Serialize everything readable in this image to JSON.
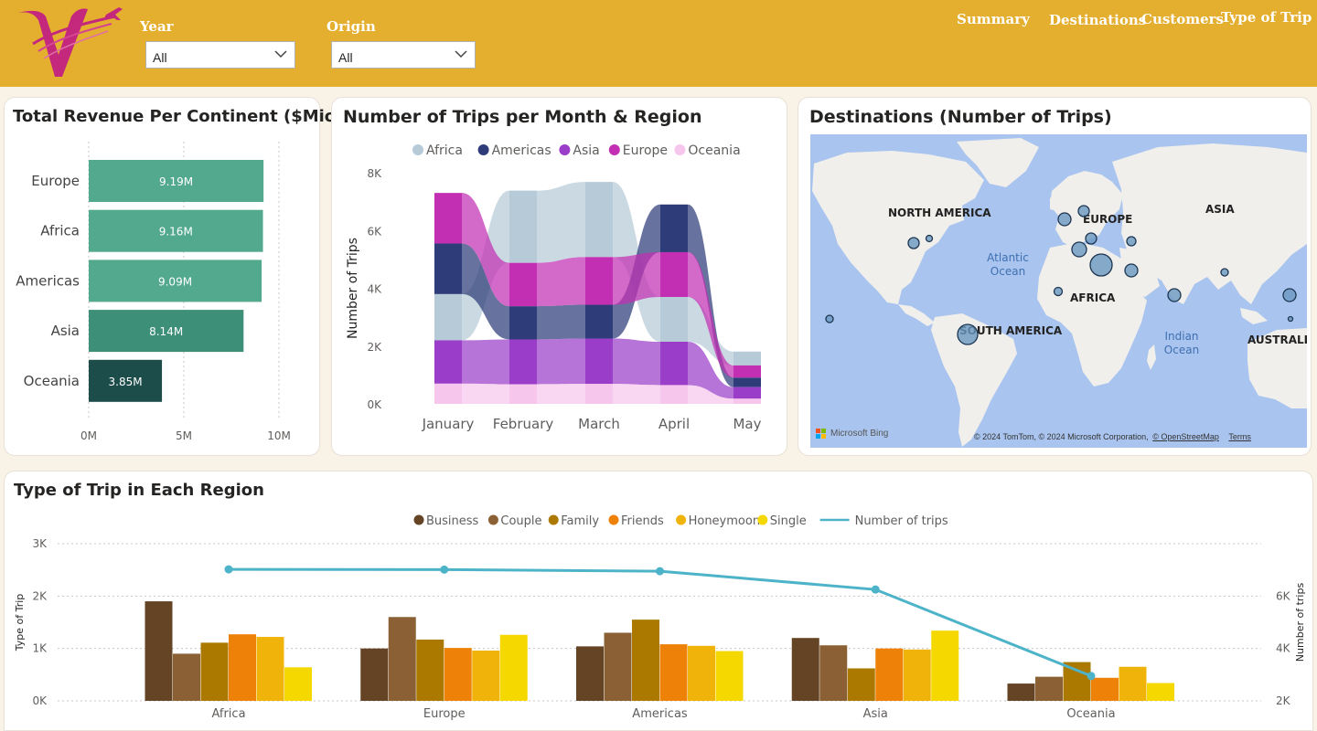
{
  "header": {
    "filters": [
      {
        "label": "Year",
        "value": "All"
      },
      {
        "label": "Origin",
        "value": "All"
      }
    ],
    "nav": [
      "Summary",
      "Destinations",
      "Customers",
      "Type of Trip"
    ],
    "colors": {
      "bar": "#e4ae2f",
      "nav_text": "#ffffff",
      "logo": "#c3287c"
    }
  },
  "revenue": {
    "title": "Total Revenue Per Continent ($Mio)",
    "chart_data": {
      "type": "bar",
      "orientation": "horizontal",
      "categories": [
        "Europe",
        "Africa",
        "Americas",
        "Asia",
        "Oceania"
      ],
      "values": [
        9.19,
        9.16,
        9.09,
        8.14,
        3.85
      ],
      "data_labels": [
        "9.19M",
        "9.16M",
        "9.09M",
        "8.14M",
        "3.85M"
      ],
      "x_ticks": [
        "0M",
        "5M",
        "10M"
      ],
      "xlim": [
        0,
        10
      ],
      "colors": [
        "#52a98d",
        "#52a98d",
        "#52a98d",
        "#3d8f78",
        "#1d4d4a"
      ],
      "grid": true
    }
  },
  "trips_month": {
    "title": "Number of Trips per Month & Region",
    "chart_data": {
      "type": "area",
      "subtype": "ribbon",
      "ylabel": "Number of Trips",
      "categories": [
        "January",
        "February",
        "March",
        "April",
        "May"
      ],
      "y_ticks": [
        "0K",
        "2K",
        "4K",
        "6K",
        "8K"
      ],
      "ylim": [
        0,
        8000
      ],
      "series": [
        {
          "name": "Africa",
          "color": "#b7cad8",
          "values": [
            1600,
            2500,
            2600,
            1550,
            480
          ]
        },
        {
          "name": "Americas",
          "color": "#2e3c79",
          "values": [
            1750,
            1150,
            1170,
            1650,
            330
          ]
        },
        {
          "name": "Asia",
          "color": "#9a3ec9",
          "values": [
            1500,
            1550,
            1570,
            1500,
            400
          ]
        },
        {
          "name": "Europe",
          "color": "#c22fb3",
          "values": [
            1750,
            1500,
            1650,
            1550,
            420
          ]
        },
        {
          "name": "Oceania",
          "color": "#f6c6ec",
          "values": [
            700,
            680,
            690,
            650,
            180
          ]
        }
      ],
      "legend": "top",
      "grid": false
    }
  },
  "map": {
    "title": "Destinations (Number of Trips)",
    "labels": {
      "north_america": "NORTH AMERICA",
      "europe": "EUROPE",
      "asia": "ASIA",
      "africa": "AFRICA",
      "south_america": "SOUTH AMERICA",
      "australia": "AUSTRALIA",
      "atlantic_ocean": "Atlantic Ocean",
      "indian_ocean": "Indian Ocean"
    },
    "attribution": "© 2024 TomTom, © 2024 Microsoft Corporation,",
    "osm": "© OpenStreetMap",
    "terms": "Terms",
    "brand": "Microsoft Bing",
    "colors": {
      "water": "#a9c4ee",
      "land": "#f0efec",
      "bubble": "#6a99c0"
    }
  },
  "trip_type": {
    "title": "Type of Trip in Each Region",
    "chart_data": {
      "type": "bar",
      "subtype": "clustered-bar-with-line",
      "categories": [
        "Africa",
        "Europe",
        "Americas",
        "Asia",
        "Oceania"
      ],
      "series": [
        {
          "name": "Business",
          "color": "#654426",
          "values": [
            1900,
            1000,
            1040,
            1200,
            330
          ]
        },
        {
          "name": "Couple",
          "color": "#8b6034",
          "values": [
            900,
            1600,
            1300,
            1060,
            460
          ]
        },
        {
          "name": "Family",
          "color": "#ab7800",
          "values": [
            1110,
            1170,
            1550,
            620,
            740
          ]
        },
        {
          "name": "Friends",
          "color": "#ee8209",
          "values": [
            1270,
            1010,
            1080,
            1000,
            440
          ]
        },
        {
          "name": "Honeymoon",
          "color": "#f0b30a",
          "values": [
            1220,
            960,
            1050,
            980,
            650
          ]
        },
        {
          "name": "Single",
          "color": "#f5d800",
          "values": [
            640,
            1260,
            950,
            1340,
            340
          ]
        }
      ],
      "line": {
        "name": "Number of trips",
        "color": "#4db3c9",
        "values": [
          7020,
          7010,
          6950,
          6250,
          2950
        ]
      },
      "ylabel": "Type of Trip",
      "y2label": "Number of trips",
      "y_ticks": [
        "0K",
        "1K",
        "2K",
        "3K"
      ],
      "y2_ticks": [
        "2K",
        "4K",
        "6K"
      ],
      "ylim": [
        0,
        3000
      ],
      "y2lim": [
        2000,
        8000
      ],
      "legend": "top",
      "grid": true
    }
  }
}
